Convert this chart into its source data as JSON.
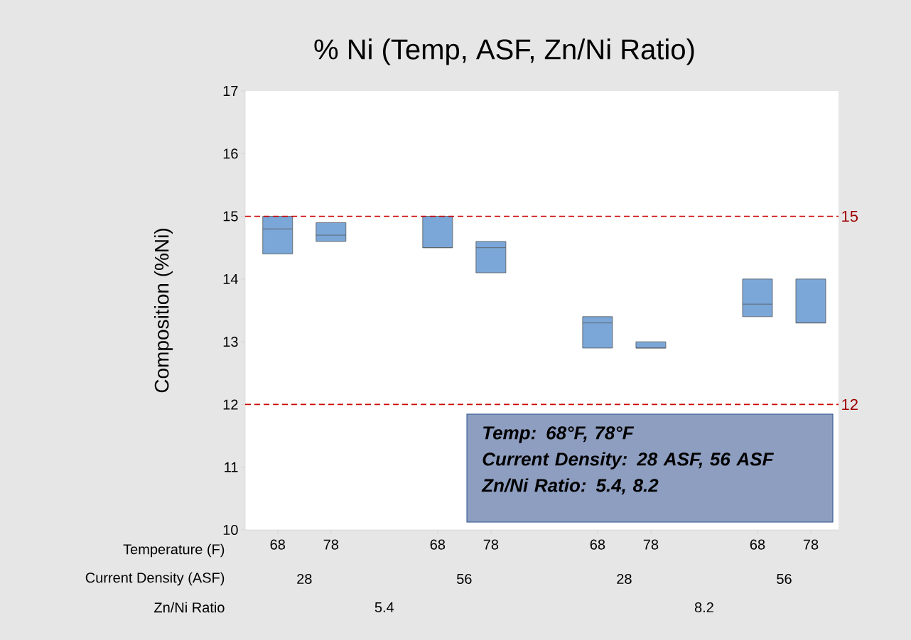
{
  "chart_data": {
    "type": "box",
    "title": "% Ni (Temp, ASF, Zn/Ni Ratio)",
    "xlabel": "Temperature (F)",
    "ylabel": "Composition (%Ni)",
    "categories": [
      "68",
      "78",
      "68",
      "78",
      "68",
      "78",
      "68",
      "78"
    ],
    "color": "#7ba7d8",
    "boxes": [
      {
        "low": 14.4,
        "q1": 14.4,
        "median": 14.8,
        "q3": 15.0,
        "high": 15.0
      },
      {
        "low": 14.6,
        "q1": 14.6,
        "median": 14.7,
        "q3": 14.9,
        "high": 14.9
      },
      {
        "low": 14.5,
        "q1": 14.5,
        "median": 14.5,
        "q3": 15.0,
        "high": 15.0
      },
      {
        "low": 14.1,
        "q1": 14.1,
        "median": 14.5,
        "q3": 14.6,
        "high": 14.6
      },
      {
        "low": 12.9,
        "q1": 12.9,
        "median": 13.3,
        "q3": 13.4,
        "high": 13.4
      },
      {
        "low": 12.9,
        "q1": 12.9,
        "median": 12.9,
        "q3": 13.0,
        "high": 13.0
      },
      {
        "low": 13.4,
        "q1": 13.4,
        "median": 13.6,
        "q3": 14.0,
        "high": 14.0
      },
      {
        "low": 13.3,
        "q1": 13.3,
        "median": 13.3,
        "q3": 14.0,
        "high": 14.0
      }
    ],
    "ylim": [
      10,
      17
    ],
    "yticks": [
      10,
      11,
      12,
      13,
      14,
      15,
      16,
      17
    ],
    "ref_lines": [
      {
        "axis": "y",
        "value": 15,
        "label": "15",
        "color": "#cc0000",
        "line_style": "dashed"
      },
      {
        "axis": "y",
        "value": 12,
        "label": "12",
        "color": "#cc0000",
        "line_style": "dashed"
      }
    ],
    "annotations": [
      "Temp: 68°F, 78°F",
      "Current Density: 28 ASF, 56 ASF",
      "Zn/Ni Ratio: 5.4, 8.2",
      "Current Density (ASF)",
      "28",
      "56",
      "28",
      "56",
      "Zn/Ni Ratio",
      "5.4",
      "8.2"
    ]
  }
}
